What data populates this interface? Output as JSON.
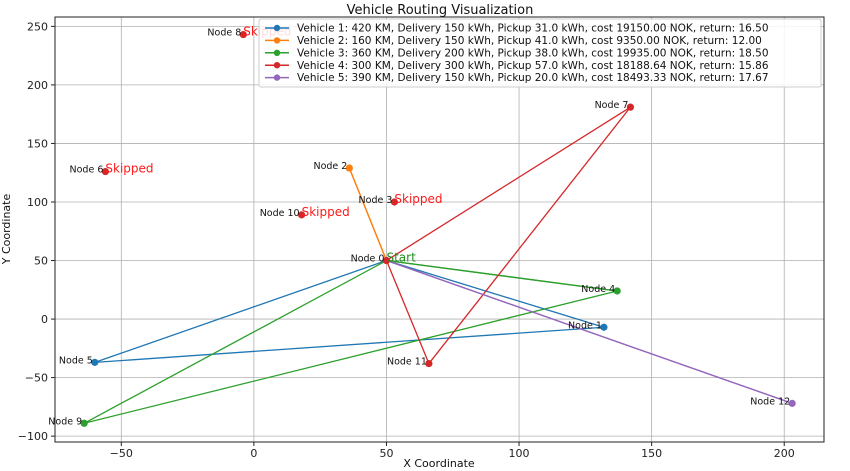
{
  "chart_data": {
    "type": "line",
    "title": "Vehicle Routing Visualization",
    "xlabel": "X Coordinate",
    "ylabel": "Y Coordinate",
    "xlim": [
      -75,
      215
    ],
    "ylim": [
      -105,
      258
    ],
    "xticks": [
      -50,
      0,
      50,
      100,
      150,
      200
    ],
    "yticks": [
      -100,
      -50,
      0,
      50,
      100,
      150,
      200,
      250
    ],
    "xtick_labels": [
      "−50",
      "0",
      "50",
      "100",
      "150",
      "200"
    ],
    "ytick_labels": [
      "−100",
      "−50",
      "0",
      "50",
      "100",
      "150",
      "200",
      "250"
    ],
    "grid": true,
    "legend_position": "top-right",
    "nodes": [
      {
        "name": "Node 0",
        "x": 50,
        "y": 50
      },
      {
        "name": "Node 1",
        "x": 132,
        "y": -7
      },
      {
        "name": "Node 2",
        "x": 36,
        "y": 129
      },
      {
        "name": "Node 3",
        "x": 53,
        "y": 100
      },
      {
        "name": "Node 4",
        "x": 137,
        "y": 24
      },
      {
        "name": "Node 5",
        "x": -60,
        "y": -37
      },
      {
        "name": "Node 6",
        "x": -56,
        "y": 126
      },
      {
        "name": "Node 7",
        "x": 142,
        "y": 181
      },
      {
        "name": "Node 8",
        "x": -4,
        "y": 243
      },
      {
        "name": "Node 9",
        "x": -64,
        "y": -89
      },
      {
        "name": "Node 10",
        "x": 18,
        "y": 89
      },
      {
        "name": "Node 11",
        "x": 66,
        "y": -38
      },
      {
        "name": "Node 12",
        "x": 203,
        "y": -72
      }
    ],
    "annotations": [
      {
        "text": "Start",
        "node": "Node 0",
        "color": "#1f8f1f"
      },
      {
        "text": "Skipped",
        "node": "Node 3",
        "color": "#ff1a1a"
      },
      {
        "text": "Skipped",
        "node": "Node 6",
        "color": "#ff1a1a"
      },
      {
        "text": "Skipped",
        "node": "Node 8",
        "color": "#ff1a1a"
      },
      {
        "text": "Skipped",
        "node": "Node 10",
        "color": "#ff1a1a"
      }
    ],
    "series": [
      {
        "name": "Vehicle 1: 420 KM, Delivery 150 kWh, Pickup 31.0 kWh, cost 19150.00 NOK, return: 16.50",
        "color": "#1f77b4",
        "route": [
          "Node 0",
          "Node 1",
          "Node 5",
          "Node 0"
        ]
      },
      {
        "name": "Vehicle 2: 160 KM, Delivery 150 kWh, Pickup 41.0 kWh, cost 9350.00 NOK, return: 12.00",
        "color": "#ff7f0e",
        "route": [
          "Node 0",
          "Node 2",
          "Node 0"
        ]
      },
      {
        "name": "Vehicle 3: 360 KM, Delivery 200 kWh, Pickup 38.0 kWh, cost 19935.00 NOK, return: 18.50",
        "color": "#2ca02c",
        "route": [
          "Node 0",
          "Node 4",
          "Node 0",
          "Node 9",
          "Node 4"
        ]
      },
      {
        "name": "Vehicle 4: 300 KM, Delivery 300 kWh, Pickup 57.0 kWh, cost 18188.64 NOK, return: 15.86",
        "color": "#d62728",
        "route": [
          "Node 0",
          "Node 7",
          "Node 11",
          "Node 0"
        ]
      },
      {
        "name": "Vehicle 5: 390 KM, Delivery 150 kWh, Pickup 20.0 kWh, cost 18493.33 NOK, return: 17.67",
        "color": "#9467bd",
        "route": [
          "Node 0",
          "Node 12",
          "Node 0"
        ]
      }
    ]
  }
}
